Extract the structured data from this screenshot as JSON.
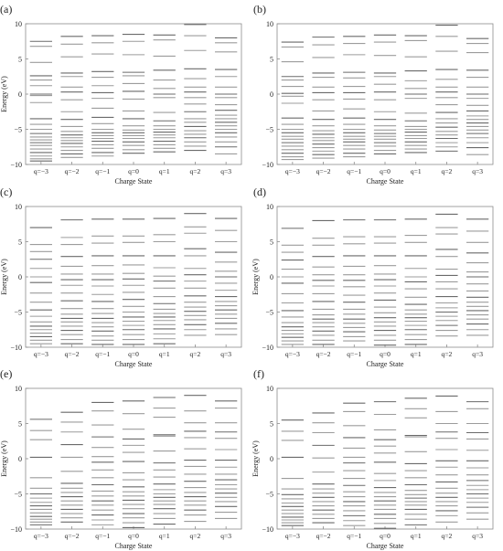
{
  "chart_data": [
    {
      "type": "scatter",
      "panel_label": "(a)",
      "ylabel": "Energy (eV)",
      "xlabel": "Charge State",
      "ylim": [
        -10,
        10
      ],
      "yticks": [
        10,
        5,
        0,
        -5,
        -10
      ],
      "categories": [
        "q=−3",
        "q=−2",
        "q=−1",
        "q=0",
        "q=1",
        "q=2",
        "q=3"
      ],
      "levels": [
        [
          7.5,
          6.8,
          4.5,
          2.6,
          2.0,
          1.2,
          0.0,
          -0.2,
          -1.2,
          -3.5,
          -4.3,
          -5.0,
          -5.6,
          -6.1,
          -6.5,
          -6.9,
          -7.3,
          -7.8,
          -8.3,
          -8.8,
          -9.2,
          -9.5
        ],
        [
          8.2,
          7.1,
          5.3,
          3.0,
          2.5,
          1.0,
          0.3,
          -0.8,
          -2.5,
          -3.6,
          -4.6,
          -5.3,
          -5.8,
          -6.2,
          -6.6,
          -7.0,
          -7.5,
          -8.0,
          -8.5,
          -9.0
        ],
        [
          8.3,
          7.3,
          5.7,
          3.2,
          2.4,
          1.2,
          0.2,
          -0.6,
          -2.0,
          -3.3,
          -4.2,
          -5.0,
          -5.5,
          -5.9,
          -6.3,
          -6.7,
          -7.2,
          -7.7,
          -8.3,
          -8.8
        ],
        [
          8.5,
          7.5,
          5.6,
          3.1,
          2.6,
          1.5,
          0.4,
          -0.7,
          -2.4,
          -3.5,
          -4.5,
          -5.1,
          -5.5,
          -5.9,
          -6.3,
          -6.8,
          -7.3,
          -7.9,
          -8.4
        ],
        [
          8.4,
          7.7,
          5.4,
          3.4,
          2.0,
          0.8,
          0.0,
          -0.5,
          -2.6,
          -3.8,
          -4.5,
          -5.0,
          -5.4,
          -5.8,
          -6.2,
          -6.7,
          -7.2,
          -7.7,
          -8.2
        ],
        [
          9.9,
          8.3,
          6.2,
          3.6,
          2.2,
          1.0,
          0.3,
          -0.5,
          -1.4,
          -2.5,
          -3.5,
          -4.0,
          -4.6,
          -5.2,
          -5.7,
          -6.2,
          -6.8,
          -7.4,
          -8.0
        ],
        [
          8.0,
          7.3,
          6.0,
          3.5,
          2.5,
          1.0,
          0.0,
          -0.5,
          -1.5,
          -2.3,
          -3.0,
          -3.5,
          -4.0,
          -4.5,
          -5.0,
          -5.5,
          -6.1,
          -6.8,
          -7.5,
          -8.5
        ]
      ]
    },
    {
      "type": "scatter",
      "panel_label": "(b)",
      "ylabel": "",
      "xlabel": "Charge State",
      "ylim": [
        -10,
        10
      ],
      "yticks": [
        10,
        5,
        0,
        -5,
        -10
      ],
      "categories": [
        "q=−3",
        "q=−2",
        "q=−1",
        "q=0",
        "q=1",
        "q=2",
        "q=3"
      ],
      "levels": [
        [
          7.4,
          6.7,
          4.6,
          2.5,
          2.0,
          1.1,
          0.1,
          -0.3,
          -1.3,
          -3.4,
          -4.3,
          -5.0,
          -5.5,
          -6.0,
          -6.4,
          -6.9,
          -7.4,
          -7.9,
          -8.4,
          -8.9,
          -9.3
        ],
        [
          8.1,
          7.0,
          5.2,
          3.0,
          2.4,
          1.0,
          0.2,
          -0.8,
          -2.4,
          -3.6,
          -4.5,
          -5.2,
          -5.7,
          -6.2,
          -6.6,
          -7.1,
          -7.6,
          -8.1,
          -8.6,
          -9.1
        ],
        [
          8.2,
          7.2,
          5.6,
          3.1,
          2.3,
          1.1,
          0.2,
          -0.7,
          -2.1,
          -3.4,
          -4.3,
          -5.0,
          -5.5,
          -6.0,
          -6.4,
          -6.8,
          -7.3,
          -7.8,
          -8.4,
          -8.9
        ],
        [
          8.4,
          7.4,
          5.5,
          3.0,
          2.5,
          1.4,
          0.3,
          -0.8,
          -2.5,
          -3.6,
          -4.5,
          -5.1,
          -5.6,
          -6.0,
          -6.4,
          -6.9,
          -7.4,
          -8.0,
          -8.5
        ],
        [
          8.3,
          7.6,
          5.3,
          3.3,
          1.9,
          0.8,
          0.0,
          -0.6,
          -2.7,
          -3.8,
          -4.6,
          -5.0,
          -5.4,
          -5.9,
          -6.3,
          -6.8,
          -7.3,
          -7.8,
          -8.3
        ],
        [
          9.8,
          8.2,
          6.1,
          3.5,
          2.1,
          1.0,
          0.3,
          -0.5,
          -1.5,
          -2.6,
          -3.5,
          -4.1,
          -4.7,
          -5.3,
          -5.8,
          -6.3,
          -6.9,
          -7.5,
          -8.1
        ],
        [
          7.9,
          7.2,
          5.9,
          3.4,
          2.4,
          1.0,
          0.0,
          -0.6,
          -1.6,
          -2.4,
          -3.1,
          -3.6,
          -4.1,
          -4.6,
          -5.1,
          -5.6,
          -6.2,
          -6.9,
          -7.6,
          -8.6
        ]
      ]
    },
    {
      "type": "scatter",
      "panel_label": "(c)",
      "ylabel": "Energy (eV)",
      "xlabel": "Charge State",
      "ylim": [
        -10,
        10
      ],
      "yticks": [
        10,
        5,
        0,
        -5,
        -10
      ],
      "categories": [
        "q=−3",
        "q=−2",
        "q=−1",
        "q=0",
        "q=1",
        "q=2",
        "q=3"
      ],
      "levels": [
        [
          7.0,
          4.6,
          3.6,
          2.5,
          1.2,
          0.0,
          -0.8,
          -2.3,
          -3.6,
          -4.7,
          -5.6,
          -6.4,
          -7.0,
          -7.5,
          -8.0,
          -8.5,
          -9.0,
          -9.5
        ],
        [
          8.1,
          5.6,
          4.6,
          2.9,
          1.5,
          0.4,
          -0.4,
          -1.2,
          -2.3,
          -3.4,
          -4.5,
          -5.3,
          -5.9,
          -6.4,
          -7.0,
          -7.6,
          -8.2,
          -8.9,
          -9.5
        ],
        [
          8.2,
          5.8,
          4.8,
          3.0,
          1.6,
          0.4,
          -0.4,
          -1.3,
          -2.5,
          -3.5,
          -4.5,
          -5.2,
          -5.9,
          -6.5,
          -7.1,
          -7.7,
          -8.4,
          -9.0,
          -9.6
        ],
        [
          8.2,
          5.8,
          4.9,
          3.0,
          1.7,
          0.5,
          -0.3,
          -1.2,
          -2.2,
          -3.2,
          -4.2,
          -5.0,
          -5.7,
          -6.3,
          -6.9,
          -7.5,
          -8.2,
          -8.9,
          -9.6
        ],
        [
          8.3,
          6.0,
          5.0,
          3.0,
          1.3,
          0.1,
          -0.6,
          -1.6,
          -2.8,
          -3.8,
          -4.6,
          -5.2,
          -5.7,
          -6.2,
          -6.8,
          -7.4,
          -8.1,
          -8.8,
          -9.5
        ],
        [
          9.0,
          7.1,
          6.2,
          4.0,
          3.0,
          1.2,
          0.3,
          -0.6,
          -1.6,
          -2.7,
          -3.6,
          -4.3,
          -4.9,
          -5.5,
          -6.1,
          -6.8,
          -7.5,
          -8.3
        ],
        [
          8.3,
          6.6,
          5.0,
          3.5,
          2.1,
          0.8,
          0.0,
          -0.9,
          -1.9,
          -2.8,
          -3.5,
          -4.1,
          -4.7,
          -5.3,
          -5.9,
          -6.6,
          -7.4,
          -8.2
        ]
      ]
    },
    {
      "type": "scatter",
      "panel_label": "(d)",
      "ylabel": "Energy (eV)",
      "xlabel": "Charge State",
      "ylim": [
        -10,
        10
      ],
      "yticks": [
        10,
        5,
        0,
        -5,
        -10
      ],
      "categories": [
        "q=−3",
        "q=−2",
        "q=−1",
        "q=0",
        "q=1",
        "q=2",
        "q=3"
      ],
      "levels": [
        [
          6.9,
          4.5,
          3.5,
          2.4,
          1.1,
          0.0,
          -0.9,
          -2.4,
          -3.7,
          -4.8,
          -5.7,
          -6.5,
          -7.1,
          -7.6,
          -8.1,
          -8.6,
          -9.1,
          -9.6
        ],
        [
          8.0,
          5.5,
          4.5,
          2.9,
          1.4,
          0.3,
          -0.5,
          -1.3,
          -2.4,
          -3.5,
          -4.6,
          -5.4,
          -6.0,
          -6.5,
          -7.1,
          -7.7,
          -8.3,
          -9.0,
          -9.6
        ],
        [
          8.1,
          5.7,
          4.7,
          3.0,
          1.5,
          0.3,
          -0.5,
          -1.4,
          -2.6,
          -3.6,
          -4.6,
          -5.3,
          -6.0,
          -6.6,
          -7.2,
          -7.8,
          -8.5,
          -9.1
        ],
        [
          8.1,
          5.7,
          4.8,
          3.0,
          1.6,
          0.4,
          -0.4,
          -1.3,
          -2.3,
          -3.3,
          -4.3,
          -5.1,
          -5.8,
          -6.4,
          -7.0,
          -7.6,
          -8.3,
          -9.0,
          -9.7
        ],
        [
          8.2,
          5.9,
          4.9,
          3.0,
          1.2,
          0.0,
          -0.7,
          -1.7,
          -2.9,
          -3.9,
          -4.7,
          -5.3,
          -5.8,
          -6.3,
          -6.9,
          -7.5,
          -8.2,
          -8.9,
          -9.6
        ],
        [
          8.9,
          7.0,
          6.1,
          3.9,
          2.9,
          1.1,
          0.2,
          -0.7,
          -1.7,
          -2.8,
          -3.7,
          -4.4,
          -5.0,
          -5.6,
          -6.2,
          -6.9,
          -7.6,
          -8.4
        ],
        [
          8.2,
          6.5,
          4.9,
          3.4,
          2.0,
          0.7,
          0.0,
          -1.0,
          -2.0,
          -2.9,
          -3.6,
          -4.2,
          -4.8,
          -5.4,
          -6.0,
          -6.7,
          -7.5,
          -8.3
        ]
      ]
    },
    {
      "type": "scatter",
      "panel_label": "(e)",
      "ylabel": "Energy (eV)",
      "xlabel": "Charge State",
      "ylim": [
        -10,
        10
      ],
      "yticks": [
        10,
        5,
        0,
        -5,
        -10
      ],
      "categories": [
        "q=−3",
        "q=−2",
        "q=−1",
        "q=0",
        "q=1",
        "q=2",
        "q=3"
      ],
      "levels": [
        [
          5.6,
          4.0,
          2.7,
          0.2,
          -2.7,
          -4.2,
          -5.0,
          -5.6,
          -6.2,
          -6.7,
          -7.2,
          -7.7,
          -8.2,
          -8.6,
          -9.0,
          -9.4
        ],
        [
          6.6,
          5.2,
          3.8,
          2.0,
          0.2,
          -1.8,
          -3.5,
          -4.2,
          -4.8,
          -5.4,
          -6.0,
          -6.6,
          -7.2,
          -7.8,
          -8.4,
          -9.0
        ],
        [
          8.0,
          6.8,
          4.8,
          3.1,
          1.6,
          0.3,
          -0.5,
          -1.6,
          -2.7,
          -3.7,
          -4.6,
          -5.3,
          -6.0,
          -6.6,
          -7.3,
          -8.0,
          -8.7,
          -9.4
        ],
        [
          8.2,
          6.4,
          4.2,
          2.8,
          1.9,
          0.9,
          -0.4,
          -2.0,
          -3.0,
          -4.0,
          -4.7,
          -5.3,
          -5.9,
          -6.5,
          -7.1,
          -7.8,
          -8.4,
          -9.1,
          -9.8
        ],
        [
          8.7,
          7.2,
          5.9,
          3.4,
          3.2,
          1.1,
          -0.6,
          -1.6,
          -2.6,
          -3.6,
          -4.4,
          -5.0,
          -5.5,
          -6.0,
          -6.5,
          -7.1,
          -7.8,
          -8.5,
          -9.3
        ],
        [
          9.0,
          6.8,
          5.1,
          3.9,
          3.0,
          1.4,
          -0.2,
          -1.1,
          -2.2,
          -3.2,
          -4.1,
          -4.8,
          -5.4,
          -6.0,
          -6.6,
          -7.3,
          -8.0,
          -8.9
        ],
        [
          8.2,
          7.2,
          5.1,
          3.8,
          2.9,
          1.3,
          -0.2,
          -1.2,
          -2.2,
          -3.0,
          -3.7,
          -4.3,
          -4.9,
          -5.5,
          -6.1,
          -6.8,
          -7.6,
          -8.5
        ]
      ]
    },
    {
      "type": "scatter",
      "panel_label": "(f)",
      "ylabel": "Energy (eV)",
      "xlabel": "Charge State",
      "ylim": [
        -10,
        10
      ],
      "yticks": [
        10,
        5,
        0,
        -5,
        -10
      ],
      "categories": [
        "q=−3",
        "q=−2",
        "q=−1",
        "q=0",
        "q=1",
        "q=2",
        "q=3"
      ],
      "levels": [
        [
          5.5,
          3.9,
          2.6,
          0.2,
          -2.8,
          -4.3,
          -5.1,
          -5.7,
          -6.3,
          -6.8,
          -7.3,
          -7.8,
          -8.3,
          -8.7,
          -9.1,
          -9.5
        ],
        [
          6.5,
          5.1,
          3.7,
          1.9,
          0.1,
          -1.9,
          -3.6,
          -4.3,
          -4.9,
          -5.5,
          -6.1,
          -6.7,
          -7.3,
          -7.9,
          -8.5,
          -9.1
        ],
        [
          7.9,
          6.7,
          4.7,
          3.0,
          1.5,
          0.2,
          -0.6,
          -1.7,
          -2.8,
          -3.8,
          -4.7,
          -5.4,
          -6.1,
          -6.7,
          -7.4,
          -8.1,
          -8.8,
          -9.5
        ],
        [
          8.1,
          6.3,
          4.1,
          2.7,
          1.8,
          0.8,
          -0.5,
          -2.1,
          -3.1,
          -4.1,
          -4.8,
          -5.4,
          -6.0,
          -6.6,
          -7.2,
          -7.9,
          -8.5,
          -9.2,
          -9.9
        ],
        [
          8.6,
          7.1,
          5.8,
          3.3,
          3.1,
          1.0,
          -0.7,
          -1.7,
          -2.7,
          -3.7,
          -4.5,
          -5.1,
          -5.6,
          -6.1,
          -6.6,
          -7.2,
          -7.9,
          -8.6,
          -9.4
        ],
        [
          8.9,
          6.7,
          5.0,
          3.8,
          2.9,
          1.3,
          -0.3,
          -1.2,
          -2.3,
          -3.3,
          -4.2,
          -4.9,
          -5.5,
          -6.1,
          -6.7,
          -7.4,
          -8.1,
          -9.0
        ],
        [
          8.1,
          7.1,
          5.0,
          3.7,
          2.8,
          1.2,
          -0.3,
          -1.3,
          -2.3,
          -3.1,
          -3.8,
          -4.4,
          -5.0,
          -5.6,
          -6.2,
          -6.9,
          -7.7,
          -8.6
        ]
      ]
    }
  ],
  "styles": {
    "axis_color": "#8c8c8c",
    "level_color": "#5a5a5a",
    "text_color": "#222222"
  }
}
